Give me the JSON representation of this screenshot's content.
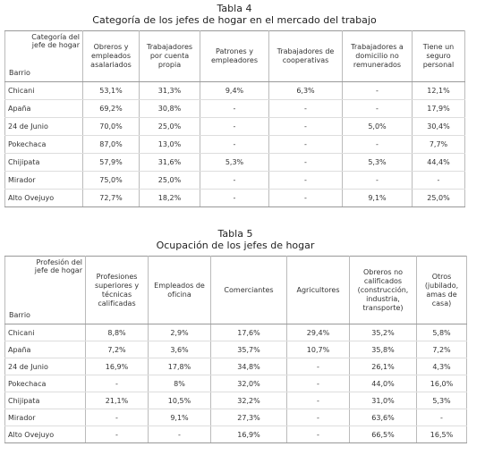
{
  "tables": [
    {
      "title": "Tabla 4",
      "subtitle": "Categoría de los jefes de hogar en el mercado del trabajo",
      "corner_top": "Categoría del jefe de hogar",
      "corner_bottom": "Barrio",
      "columns": [
        "Obreros y empleados asalariados",
        "Trabajadores por cuenta propia",
        "Patrones y empleadores",
        "Trabajadores de cooperativas",
        "Trabajadores a domicilio no remunerados",
        "Tiene un seguro personal"
      ],
      "rows": [
        [
          "Chicani",
          "53,1%",
          "31,3%",
          "9,4%",
          "6,3%",
          "-",
          "12,1%"
        ],
        [
          "Apaña",
          "69,2%",
          "30,8%",
          "-",
          "-",
          "-",
          "17,9%"
        ],
        [
          "24 de Junio",
          "70,0%",
          "25,0%",
          "-",
          "-",
          "5,0%",
          "30,4%"
        ],
        [
          "Pokechaca",
          "87,0%",
          "13,0%",
          "-",
          "-",
          "-",
          "7,7%"
        ],
        [
          "Chijipata",
          "57,9%",
          "31,6%",
          "5,3%",
          "-",
          "5,3%",
          "44,4%"
        ],
        [
          "Mirador",
          "75,0%",
          "25,0%",
          "-",
          "-",
          "-",
          "-"
        ],
        [
          "Alto Ovejuyo",
          "72,7%",
          "18,2%",
          "-",
          "-",
          "9,1%",
          "25,0%"
        ]
      ]
    },
    {
      "title": "Tabla 5",
      "subtitle": "Ocupación de los jefes de hogar",
      "corner_top": "Profesión del jefe de hogar",
      "corner_bottom": "Barrio",
      "columns": [
        "Profesiones superiores y técnicas calificadas",
        "Empleados de oficina",
        "Comerciantes",
        "Agricultores",
        "Obreros no calificados (construcción, industria, transporte)",
        "Otros (jubilado, amas de casa)"
      ],
      "rows": [
        [
          "Chicani",
          "8,8%",
          "2,9%",
          "17,6%",
          "29,4%",
          "35,2%",
          "5,8%"
        ],
        [
          "Apaña",
          "7,2%",
          "3,6%",
          "35,7%",
          "10,7%",
          "35,8%",
          "7,2%"
        ],
        [
          "24 de Junio",
          "16,9%",
          "17,8%",
          "34,8%",
          "-",
          "26,1%",
          "4,3%"
        ],
        [
          "Pokechaca",
          "-",
          "8%",
          "32,0%",
          "-",
          "44,0%",
          "16,0%"
        ],
        [
          "Chijipata",
          "21,1%",
          "10,5%",
          "32,2%",
          "-",
          "31,0%",
          "5,3%"
        ],
        [
          "Mirador",
          "-",
          "9,1%",
          "27,3%",
          "-",
          "63,6%",
          "-"
        ],
        [
          "Alto Ovejuyo",
          "-",
          "-",
          "16,9%",
          "-",
          "66,5%",
          "16,5%"
        ]
      ]
    }
  ]
}
